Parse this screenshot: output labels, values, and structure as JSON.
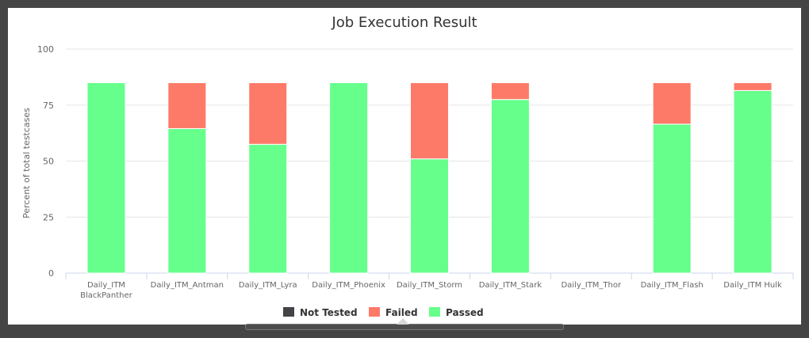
{
  "chart_data": {
    "type": "bar",
    "stacked": true,
    "title": "Job Execution Result",
    "xlabel": "",
    "ylabel": "Percent of total testcases",
    "ylim": [
      0,
      100
    ],
    "yticks": [
      0,
      25,
      50,
      75,
      100
    ],
    "grid": true,
    "legend_position": "bottom",
    "categories": [
      [
        "Daily_ITM",
        "BlackPanther"
      ],
      [
        "Daily_ITM_Antman"
      ],
      [
        "Daily_ITM_Lyra"
      ],
      [
        "Daily_ITM_Phoenix"
      ],
      [
        "Daily_ITM_Storm"
      ],
      [
        "Daily_ITM_Stark"
      ],
      [
        "Daily_ITM_Thor"
      ],
      [
        "Daily_ITM_Flash"
      ],
      [
        "Daily_ITM Hulk"
      ]
    ],
    "series": [
      {
        "name": "Not Tested",
        "color": "#434348",
        "values": [
          0,
          0,
          0,
          0,
          0,
          0,
          0,
          0,
          0
        ]
      },
      {
        "name": "Failed",
        "color": "#fe7a68",
        "values": [
          0,
          20.5,
          27.5,
          0,
          34,
          7.5,
          0,
          18.5,
          3.5
        ]
      },
      {
        "name": "Passed",
        "color": "#66ff8c",
        "values": [
          85,
          64.5,
          57.5,
          85,
          51,
          77.5,
          0,
          66.5,
          81.5
        ]
      }
    ]
  }
}
